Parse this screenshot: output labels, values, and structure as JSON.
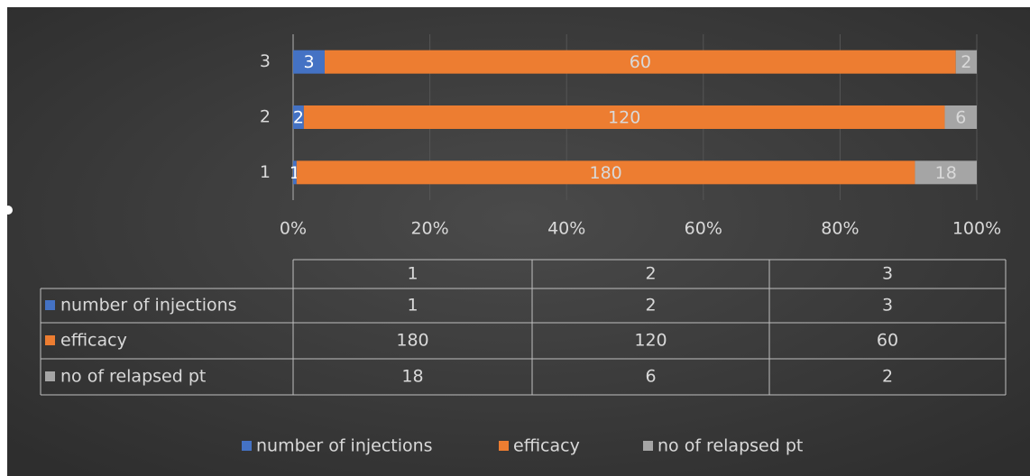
{
  "chart_data": {
    "type": "bar",
    "orientation": "horizontal",
    "stacking": "percent",
    "categories": [
      "1",
      "2",
      "3"
    ],
    "series": [
      {
        "name": "number of injections",
        "color": "#4472c4",
        "values": [
          1,
          2,
          3
        ]
      },
      {
        "name": "efficacy",
        "color": "#ed7d31",
        "values": [
          180,
          120,
          60
        ]
      },
      {
        "name": "no of relapsed pt",
        "color": "#a5a5a5",
        "values": [
          18,
          6,
          2
        ]
      }
    ],
    "xlim": [
      0,
      100
    ],
    "xticks": [
      {
        "value": 0,
        "label": "0%"
      },
      {
        "value": 20,
        "label": "20%"
      },
      {
        "value": 40,
        "label": "40%"
      },
      {
        "value": 60,
        "label": "60%"
      },
      {
        "value": 80,
        "label": "80%"
      },
      {
        "value": 100,
        "label": "100%"
      }
    ],
    "grid": true,
    "data_table": true,
    "legend": "bottom"
  }
}
